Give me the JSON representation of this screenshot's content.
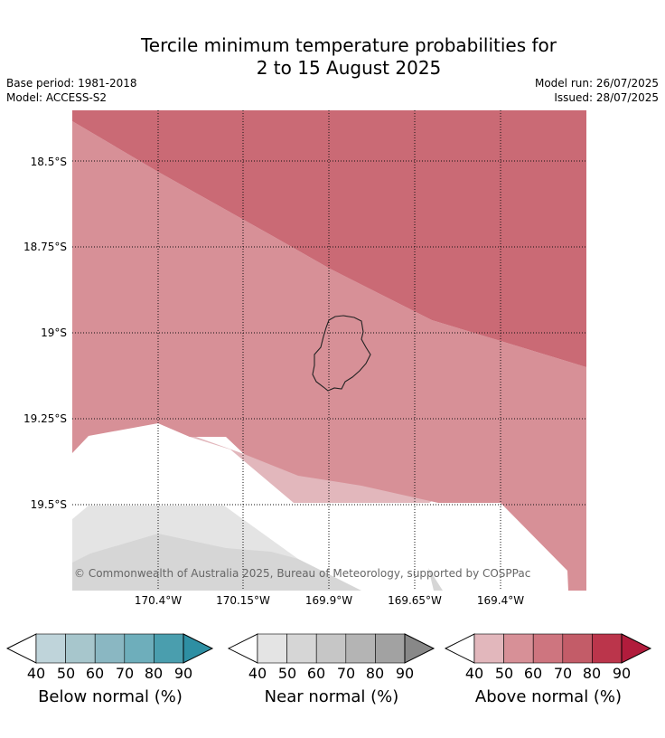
{
  "title_line1": "Tercile minimum temperature probabilities for",
  "title_line2": "2 to 15 August 2025",
  "meta": {
    "base_period": "Base period: 1981-2018",
    "model": "Model: ACCESS-S2",
    "model_run": "Model run: 26/07/2025",
    "issued": "Issued: 28/07/2025"
  },
  "map": {
    "lat_labels": [
      "18.5°S",
      "18.75°S",
      "19°S",
      "19.25°S",
      "19.5°S"
    ],
    "lon_labels": [
      "170.4°W",
      "170.15°W",
      "169.9°W",
      "169.65°W",
      "169.4°W"
    ],
    "copyright": "© Commonwealth of Australia 2025, Bureau of Meteorology, supported by COSPPac"
  },
  "legends": [
    {
      "title": "Below normal (%)",
      "ticks": [
        "40",
        "50",
        "60",
        "70",
        "80",
        "90"
      ],
      "colors": [
        "#bfd4da",
        "#a7c6cc",
        "#8ab7c2",
        "#6eaebb",
        "#4a9eae",
        "#2e8fa3"
      ]
    },
    {
      "title": "Near normal (%)",
      "ticks": [
        "40",
        "50",
        "60",
        "70",
        "80",
        "90"
      ],
      "colors": [
        "#e4e4e4",
        "#d6d6d6",
        "#c6c6c6",
        "#b4b4b4",
        "#a2a2a2",
        "#888888"
      ]
    },
    {
      "title": "Above normal (%)",
      "ticks": [
        "40",
        "50",
        "60",
        "70",
        "80",
        "90"
      ],
      "colors": [
        "#e2b7bc",
        "#d79097",
        "#ce757f",
        "#c35c68",
        "#bb354b",
        "#b11c3c"
      ]
    }
  ]
}
